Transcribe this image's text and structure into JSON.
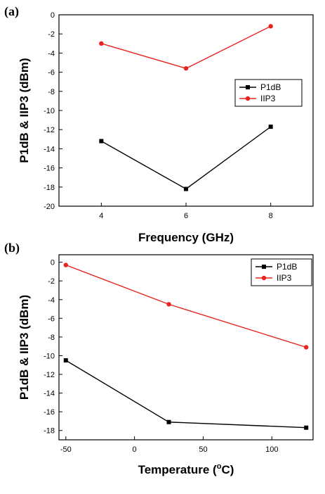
{
  "chart_data": [
    {
      "type": "line",
      "panel_label": "(a)",
      "xlabel": "Frequency (GHz)",
      "ylabel": "P1dB & IIP3 (dBm)",
      "x": [
        4,
        6,
        8
      ],
      "xlim": [
        3,
        9
      ],
      "ylim": [
        -20,
        0
      ],
      "xticks": [
        4,
        6,
        8
      ],
      "yticks": [
        0,
        -2,
        -4,
        -6,
        -8,
        -10,
        -12,
        -14,
        -16,
        -18,
        -20
      ],
      "grid": false,
      "legend_position": "center-right",
      "series": [
        {
          "name": "P1dB",
          "color": "#000000",
          "marker": "square",
          "values": [
            -13.2,
            -18.2,
            -11.7
          ]
        },
        {
          "name": "IIP3",
          "color": "#e8231c",
          "marker": "circle",
          "values": [
            -3.0,
            -5.6,
            -1.2
          ]
        }
      ]
    },
    {
      "type": "line",
      "panel_label": "(b)",
      "xlabel_prefix": "Temperature (",
      "xlabel_sup": "o",
      "xlabel_suffix": "C)",
      "ylabel": "P1dB & IIP3 (dBm)",
      "x": [
        -50,
        25,
        125
      ],
      "xlim": [
        -55,
        130
      ],
      "ylim": [
        -19,
        0.8
      ],
      "xticks": [
        -50,
        0,
        50,
        100
      ],
      "yticks": [
        0,
        -2,
        -4,
        -6,
        -8,
        -10,
        -12,
        -14,
        -16,
        -18
      ],
      "grid": false,
      "legend_position": "top-right",
      "series": [
        {
          "name": "P1dB",
          "color": "#000000",
          "marker": "square",
          "values": [
            -10.5,
            -17.1,
            -17.7
          ]
        },
        {
          "name": "IIP3",
          "color": "#e8231c",
          "marker": "circle",
          "values": [
            -0.3,
            -4.5,
            -9.1
          ]
        }
      ]
    }
  ]
}
